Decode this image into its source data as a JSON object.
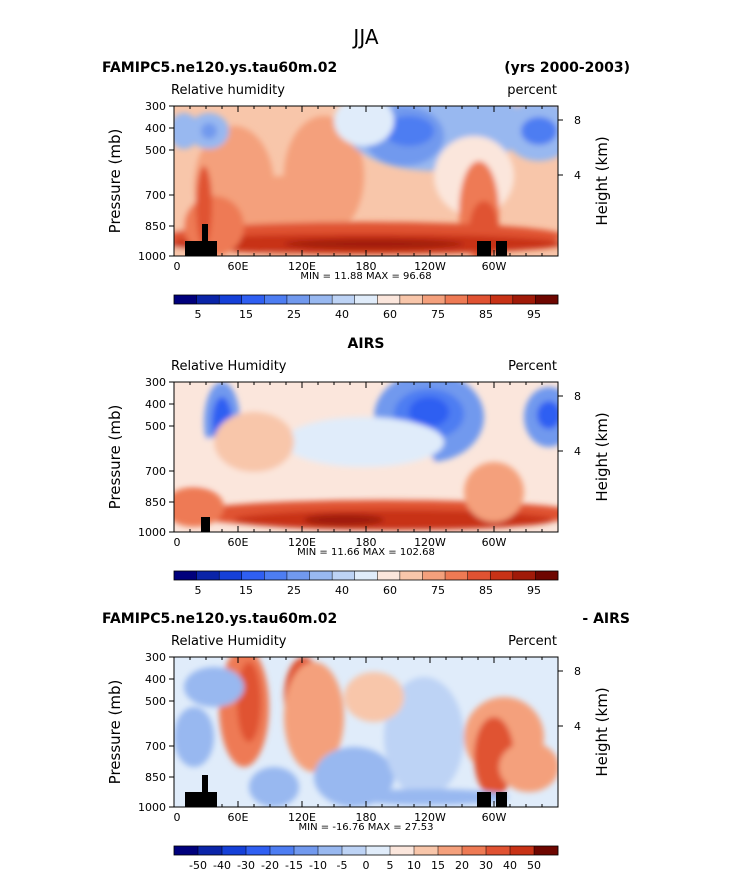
{
  "title": "JJA",
  "panels": [
    {
      "case_name": "FAMIPC5.ne120.ys.tau60m.02",
      "years": "(yrs 2000-2003)",
      "field_label": "Relative humidity",
      "units": "percent",
      "ylabel": "Pressure (mb)",
      "y2label": "Height (km)",
      "stats": "MIN =   11.88   MAX =   96.68",
      "colorbar_labels": [
        "5",
        "15",
        "25",
        "40",
        "60",
        "75",
        "85",
        "95"
      ],
      "topography": true
    },
    {
      "case_name": "AIRS",
      "years": "",
      "field_label": "Relative Humidity",
      "units": "Percent",
      "ylabel": "Pressure (mb)",
      "y2label": "Height (km)",
      "stats": "MIN =   11.66   MAX =  102.68",
      "colorbar_labels": [
        "5",
        "15",
        "25",
        "40",
        "60",
        "75",
        "85",
        "95"
      ],
      "topography": false
    },
    {
      "case_name": "FAMIPC5.ne120.ys.tau60m.02",
      "years": "- AIRS",
      "field_label": "Relative Humidity",
      "units": "Percent",
      "ylabel": "Pressure (mb)",
      "y2label": "Height (km)",
      "stats": "MIN =  -16.76   MAX =   27.53",
      "colorbar_labels": [
        "-50",
        "-40",
        "-30",
        "-20",
        "-15",
        "-10",
        "-5",
        "0",
        "5",
        "10",
        "15",
        "20",
        "30",
        "40",
        "50"
      ],
      "topography": true
    }
  ],
  "chart_data": [
    {
      "type": "heatmap",
      "title": "FAMIPC5.ne120.ys.tau60m.02",
      "ylabel": "Pressure (mb)",
      "y2label": "Height (km)",
      "x_ticks": [
        "0",
        "60E",
        "120E",
        "180",
        "120W",
        "60W"
      ],
      "y_ticks": [
        "300",
        "400",
        "500",
        "700",
        "850",
        "1000"
      ],
      "y2_ticks": [
        "8",
        "4"
      ],
      "min": 11.88,
      "max": 96.68,
      "levels": [
        5,
        10,
        15,
        20,
        25,
        30,
        40,
        50,
        60,
        65,
        70,
        75,
        80,
        85,
        90,
        95
      ]
    },
    {
      "type": "heatmap",
      "title": "AIRS",
      "ylabel": "Pressure (mb)",
      "y2label": "Height (km)",
      "x_ticks": [
        "0",
        "60E",
        "120E",
        "180",
        "120W",
        "60W"
      ],
      "y_ticks": [
        "300",
        "400",
        "500",
        "700",
        "850",
        "1000"
      ],
      "y2_ticks": [
        "8",
        "4"
      ],
      "min": 11.66,
      "max": 102.68,
      "levels": [
        5,
        10,
        15,
        20,
        25,
        30,
        40,
        50,
        60,
        65,
        70,
        75,
        80,
        85,
        90,
        95
      ]
    },
    {
      "type": "heatmap",
      "title": "FAMIPC5.ne120.ys.tau60m.02 - AIRS",
      "ylabel": "Pressure (mb)",
      "y2label": "Height (km)",
      "x_ticks": [
        "0",
        "60E",
        "120E",
        "180",
        "120W",
        "60W"
      ],
      "y_ticks": [
        "300",
        "400",
        "500",
        "700",
        "850",
        "1000"
      ],
      "y2_ticks": [
        "8",
        "4"
      ],
      "min": -16.76,
      "max": 27.53,
      "levels": [
        -50,
        -40,
        -30,
        -20,
        -15,
        -10,
        -5,
        0,
        5,
        10,
        15,
        20,
        30,
        40,
        50
      ]
    }
  ],
  "colors": {
    "abs_scale": [
      "#00007c",
      "#0a24a8",
      "#1540d8",
      "#2f5ff2",
      "#4d7df2",
      "#7199ee",
      "#98b8f0",
      "#bdd3f5",
      "#e0ecfa",
      "#fbe6dc",
      "#f8c6aa",
      "#f4a07c",
      "#ee7a54",
      "#e05232",
      "#c83216",
      "#a01a08",
      "#6e0600"
    ],
    "diff_scale": [
      "#00007c",
      "#0a24a8",
      "#1540d8",
      "#2f5ff2",
      "#4d7df2",
      "#7199ee",
      "#98b8f0",
      "#bdd3f5",
      "#e0ecfa",
      "#fbe6dc",
      "#f8c6aa",
      "#f4a07c",
      "#ee7a54",
      "#e05232",
      "#c83216",
      "#6e0600"
    ]
  }
}
